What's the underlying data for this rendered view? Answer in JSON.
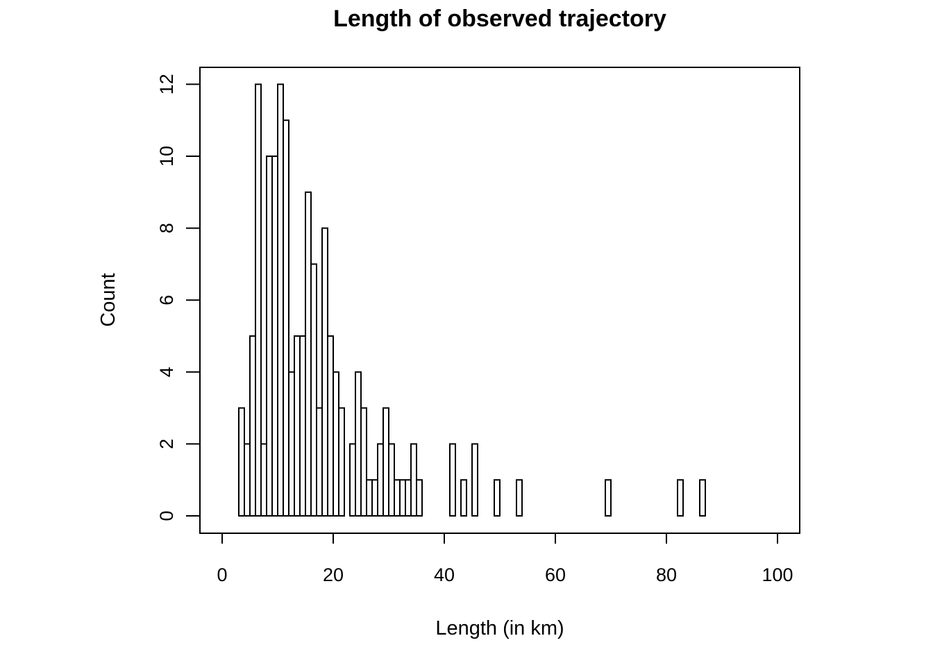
{
  "chart_data": {
    "type": "bar",
    "title": "Length of observed trajectory",
    "xlabel": "Length (in km)",
    "ylabel": "Count",
    "xlim": [
      0,
      100
    ],
    "ylim": [
      0,
      12
    ],
    "xticks": [
      0,
      20,
      40,
      60,
      80,
      100
    ],
    "yticks": [
      0,
      2,
      4,
      6,
      8,
      10,
      12
    ],
    "grid": false,
    "bin_width": 1,
    "bins_start": [
      3,
      4,
      5,
      6,
      7,
      8,
      9,
      10,
      11,
      12,
      13,
      14,
      15,
      16,
      17,
      18,
      19,
      20,
      21,
      22,
      23,
      24,
      25,
      26,
      27,
      28,
      29,
      30,
      31,
      32,
      33,
      34,
      35,
      36,
      37,
      38,
      39,
      40,
      41,
      42,
      43,
      44,
      45,
      46,
      47,
      48,
      49,
      50,
      51,
      52,
      53,
      54,
      55,
      56,
      57,
      58,
      59,
      60,
      61,
      62,
      63,
      64,
      65,
      66,
      67,
      68,
      69,
      70,
      71,
      72,
      73,
      74,
      75,
      76,
      77,
      78,
      79,
      80,
      81,
      82,
      83,
      84,
      85,
      86
    ],
    "values": [
      3,
      2,
      5,
      12,
      2,
      10,
      10,
      12,
      11,
      4,
      5,
      5,
      9,
      7,
      3,
      8,
      5,
      4,
      3,
      0,
      2,
      4,
      3,
      1,
      1,
      2,
      3,
      2,
      1,
      1,
      1,
      2,
      1,
      0,
      0,
      0,
      0,
      0,
      2,
      0,
      1,
      0,
      2,
      0,
      0,
      0,
      1,
      0,
      0,
      0,
      1,
      0,
      0,
      0,
      0,
      0,
      0,
      0,
      0,
      0,
      0,
      0,
      0,
      0,
      0,
      0,
      1,
      0,
      0,
      0,
      0,
      0,
      0,
      0,
      0,
      0,
      0,
      0,
      0,
      1,
      0,
      0,
      0,
      1
    ]
  }
}
